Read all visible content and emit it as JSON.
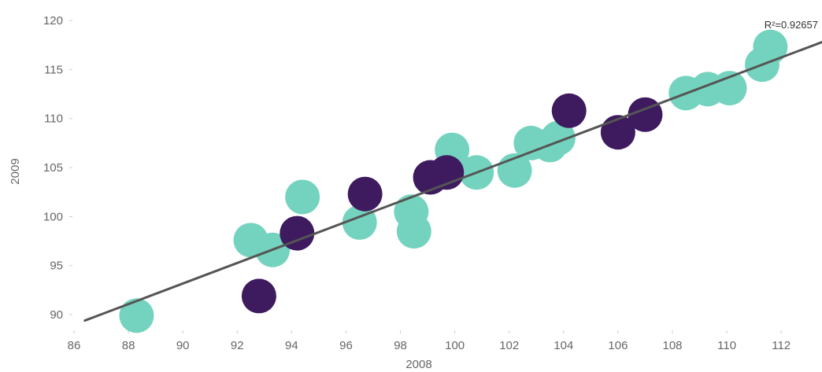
{
  "chart_data": {
    "type": "scatter",
    "xlabel": "2008",
    "ylabel": "2009",
    "xlim": [
      86,
      113.5
    ],
    "ylim": [
      87.6,
      121
    ],
    "x_ticks": [
      86,
      88,
      90,
      92,
      94,
      96,
      98,
      100,
      102,
      104,
      106,
      108,
      110,
      112
    ],
    "y_ticks": [
      90,
      95,
      100,
      105,
      110,
      115,
      120
    ],
    "grid": false,
    "colors": {
      "teal": "#74d3be",
      "purple": "#3e1a5e",
      "trend": "#555555"
    },
    "series": [
      {
        "color": "teal",
        "x": [
          88.3,
          92.5,
          93.3,
          94.4,
          96.5,
          98.4,
          98.5,
          99.9,
          100.8,
          102.2,
          102.8,
          103.5,
          103.8,
          108.5,
          109.3,
          110.1,
          111.3,
          111.6
        ],
        "y": [
          89.9,
          97.6,
          96.6,
          102.0,
          99.4,
          100.5,
          98.5,
          106.8,
          104.5,
          104.7,
          107.5,
          107.3,
          108.0,
          112.6,
          113.0,
          113.1,
          115.5,
          117.3
        ]
      },
      {
        "color": "purple",
        "x": [
          92.8,
          94.2,
          96.7,
          99.1,
          99.7,
          104.2,
          106.0,
          107.0
        ],
        "y": [
          91.9,
          98.3,
          102.3,
          104.0,
          104.5,
          110.8,
          108.6,
          110.4
        ]
      }
    ],
    "trendline": {
      "x": [
        86.4,
        113.5
      ],
      "y": [
        89.4,
        117.8
      ]
    },
    "annotation": "R²=0.92657"
  }
}
